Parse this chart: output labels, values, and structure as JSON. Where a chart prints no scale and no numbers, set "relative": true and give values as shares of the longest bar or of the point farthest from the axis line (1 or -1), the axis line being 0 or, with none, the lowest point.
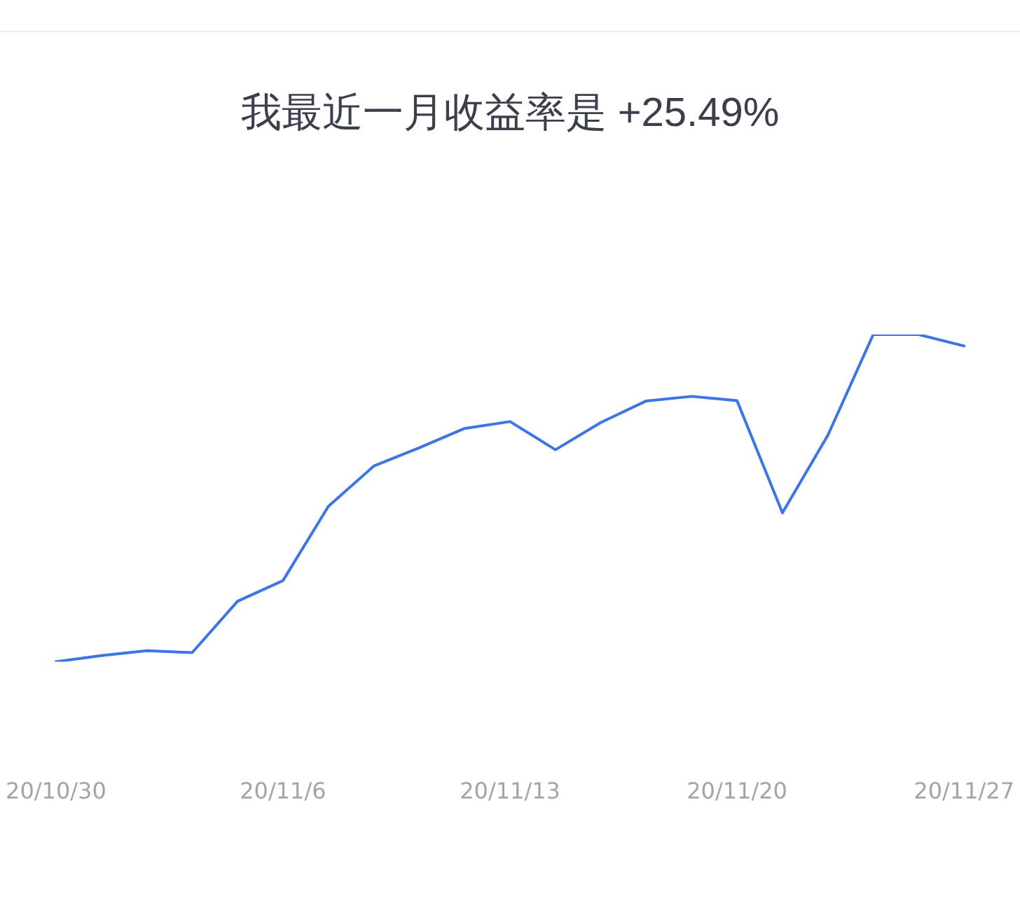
{
  "chart_data": {
    "type": "line",
    "title": "我最近一月收益率是 +25.49%",
    "categories": [
      "20/10/30",
      null,
      null,
      null,
      null,
      "20/11/6",
      null,
      null,
      null,
      null,
      "20/11/13",
      null,
      null,
      null,
      null,
      "20/11/20",
      null,
      null,
      null,
      null,
      "20/11/27"
    ],
    "values": [
      0,
      0.019,
      0.034,
      0.028,
      0.185,
      0.248,
      0.475,
      0.598,
      0.654,
      0.713,
      0.734,
      0.648,
      0.731,
      0.797,
      0.811,
      0.798,
      0.455,
      0.692,
      1,
      1,
      0.965
    ],
    "color": "#3b75e6",
    "relative": true,
    "marker": "none",
    "line_style": "solid"
  }
}
